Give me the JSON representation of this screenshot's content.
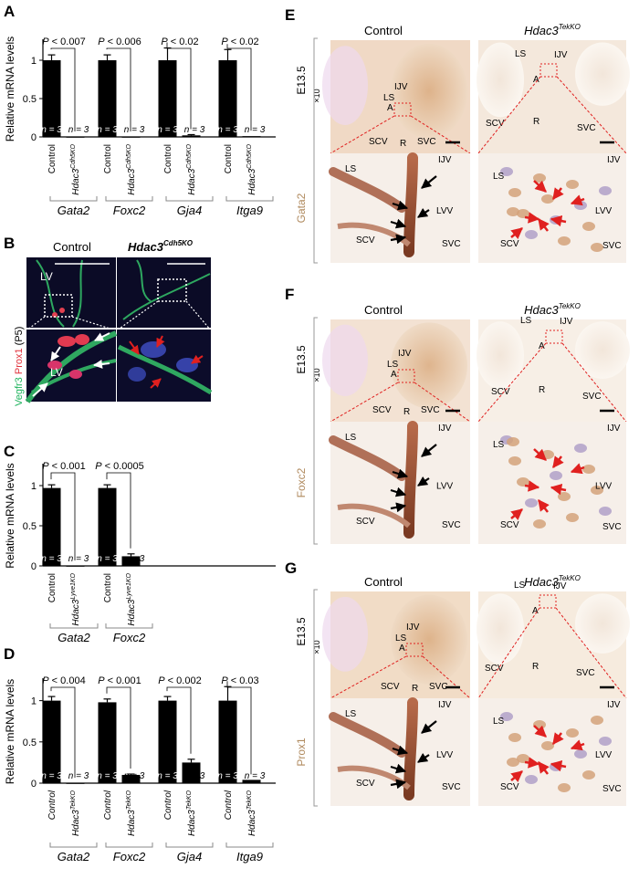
{
  "panels": {
    "A": {
      "letter": "A"
    },
    "B": {
      "letter": "B",
      "control": "Control",
      "ko": "Hdac3",
      "ko_sup": "Cdh5KO",
      "stain_parts": [
        "Vegfr3",
        "Prox1",
        "(P5)"
      ],
      "lv": "LV"
    },
    "C": {
      "letter": "C"
    },
    "D": {
      "letter": "D"
    },
    "E": {
      "letter": "E",
      "stain": "Gata2"
    },
    "F": {
      "letter": "F",
      "stain": "Foxc2"
    },
    "G": {
      "letter": "G",
      "stain": "Prox1"
    }
  },
  "micro": {
    "stage": "E13.5",
    "mag": "×10",
    "control": "Control",
    "ko": "Hdac3",
    "ko_sup": "TekKO",
    "labels": {
      "LS": "LS",
      "IJV": "IJV",
      "A": "A",
      "SCV": "SCV",
      "SVC": "SVC",
      "R": "R",
      "LVV": "LVV"
    }
  },
  "chart_data": [
    {
      "id": "A",
      "type": "bar",
      "ylabel": "Relative mRNA levels",
      "ylim": [
        0,
        1.25
      ],
      "yticks": [
        "0",
        "0.5",
        "1"
      ],
      "groups": [
        "Gata2",
        "Foxc2",
        "Gja4",
        "Itga9"
      ],
      "categories": [
        "Control",
        "Hdac3Cdh5KO",
        "Control",
        "Hdac3Cdh5KO",
        "Control",
        "Hdac3Cdh5KO",
        "Control",
        "Hdac3Cdh5KO"
      ],
      "cat_main": "Hdac3",
      "cat_sup": "Cdh5KO",
      "values": [
        1.0,
        0.0,
        1.0,
        0.0,
        1.0,
        0.02,
        1.0,
        0.01
      ],
      "errors": [
        0.07,
        0.0,
        0.07,
        0.0,
        0.16,
        0.01,
        0.14,
        0.0
      ],
      "pvalues": [
        "P < 0.007",
        "P < 0.006",
        "P < 0.02",
        "P < 0.02"
      ],
      "n": "n = 3"
    },
    {
      "id": "C",
      "type": "bar",
      "ylabel": "Relative mRNA levels",
      "ylim": [
        0,
        1.25
      ],
      "yticks": [
        "0",
        "0.5",
        "1"
      ],
      "groups": [
        "Gata2",
        "Foxc2"
      ],
      "categories": [
        "Control",
        "Hdac3Lyve1KO",
        "Control",
        "Hdac3Lyve1KO"
      ],
      "cat_main": "Hdac3",
      "cat_sup": "Lyve1KO",
      "values": [
        0.97,
        0.0,
        0.97,
        0.12
      ],
      "errors": [
        0.04,
        0.0,
        0.04,
        0.03
      ],
      "pvalues": [
        "P < 0.001",
        "P < 0.0005"
      ],
      "n": "n = 3"
    },
    {
      "id": "D",
      "type": "bar",
      "ylabel": "Relative mRNA levels",
      "ylim": [
        0,
        1.25
      ],
      "yticks": [
        "0",
        "0.5",
        "1"
      ],
      "groups": [
        "Gata2",
        "Foxc2",
        "Gja4",
        "Itga9"
      ],
      "categories": [
        "Control",
        "Hdac3TekKO",
        "Control",
        "Hdac3TekKO",
        "Control",
        "Hdac3TekKO",
        "Control",
        "Hdac3TekKO"
      ],
      "cat_main": "Hdac3",
      "cat_sup": "TekKO",
      "values": [
        1.0,
        0.0,
        0.98,
        0.1,
        1.0,
        0.25,
        1.0,
        0.04
      ],
      "errors": [
        0.05,
        0.0,
        0.04,
        0.01,
        0.05,
        0.04,
        0.17,
        0.0
      ],
      "pvalues": [
        "P < 0.004",
        "P < 0.001",
        "P < 0.002",
        "P < 0.03"
      ],
      "n": "n = 3"
    }
  ]
}
